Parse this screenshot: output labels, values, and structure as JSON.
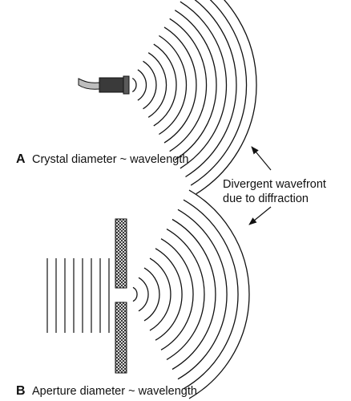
{
  "panel_a": {
    "letter": "A",
    "caption": "Crystal diameter ~ wavelength",
    "wavefront_count": 13
  },
  "panel_b": {
    "letter": "B",
    "caption": "Aperture diameter ~ wavelength",
    "wavefront_count": 11,
    "plane_wave_count": 8
  },
  "annotation": {
    "line1": "Divergent wavefront",
    "line2": "due to diffraction"
  },
  "colors": {
    "ink": "#111111",
    "background": "#ffffff",
    "transducer_body": "#3a3a3a",
    "cable": "#bdbdbd"
  },
  "icons": {
    "transducer": "ultrasound-transducer-icon",
    "barrier": "crosshatched-barrier"
  }
}
